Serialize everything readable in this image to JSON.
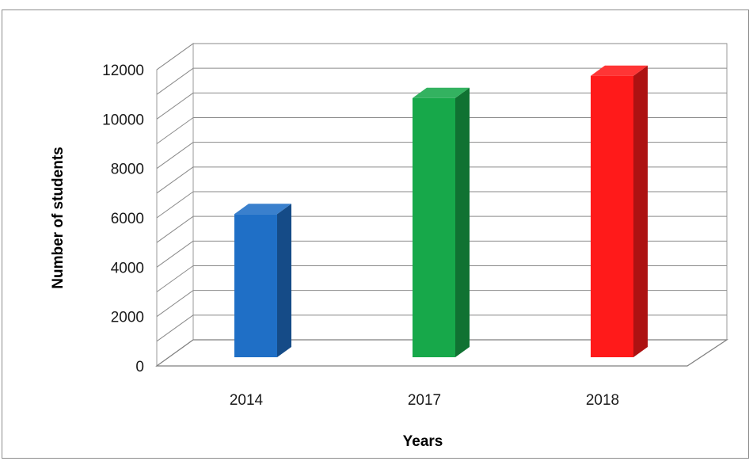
{
  "chart_data": {
    "type": "bar",
    "categories": [
      "2014",
      "2017",
      "2018"
    ],
    "values": [
      5800,
      10500,
      11400
    ],
    "colors": [
      "#1f6fc6",
      "#17a84a",
      "#ff1a1a"
    ],
    "xlabel": "Years",
    "ylabel": "Number of students",
    "ylim": [
      0,
      12000
    ],
    "yticks": [
      "0",
      "2000",
      "4000",
      "6000",
      "8000",
      "10000",
      "12000"
    ],
    "grid": "on",
    "legend": "none",
    "style": "3d-column"
  }
}
